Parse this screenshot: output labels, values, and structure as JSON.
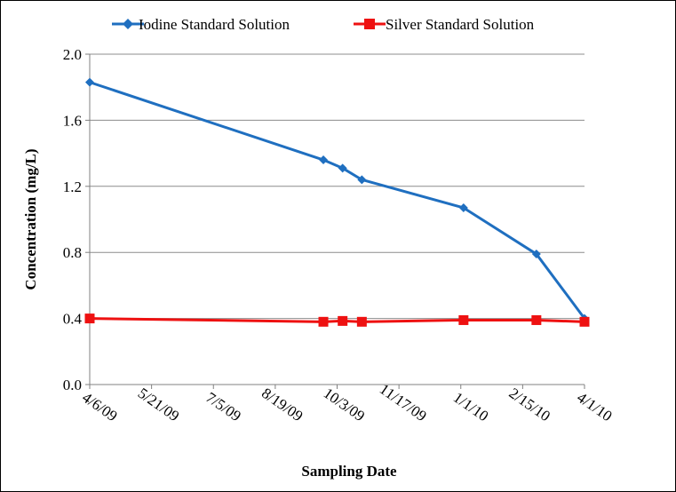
{
  "chart_data": {
    "type": "line",
    "title": "",
    "xlabel": "Sampling Date",
    "ylabel": "Concentration (mg/L)",
    "ylim": [
      0,
      2.0
    ],
    "yticks": [
      "0.0",
      "0.4",
      "0.8",
      "1.2",
      "1.6",
      "2.0"
    ],
    "xlim": [
      "2009-04-06",
      "2010-04-01"
    ],
    "xticks": [
      {
        "date": "2009-04-06",
        "label": "4/6/09"
      },
      {
        "date": "2009-05-21",
        "label": "5/21/09"
      },
      {
        "date": "2009-07-05",
        "label": "7/5/09"
      },
      {
        "date": "2009-08-19",
        "label": "8/19/09"
      },
      {
        "date": "2009-10-03",
        "label": "10/3/09"
      },
      {
        "date": "2009-11-17",
        "label": "11/17/09"
      },
      {
        "date": "2010-01-01",
        "label": "1/1/10"
      },
      {
        "date": "2010-02-15",
        "label": "2/15/10"
      },
      {
        "date": "2010-04-01",
        "label": "4/1/10"
      }
    ],
    "grid": "horizontal",
    "legend": "top",
    "series": [
      {
        "name": "Iodine Standard Solution",
        "color": "#1f6fc0",
        "marker": "diamond",
        "x": [
          "2009-04-06",
          "2009-09-23",
          "2009-10-07",
          "2009-10-21",
          "2010-01-03",
          "2010-02-25",
          "2010-04-01"
        ],
        "y": [
          1.83,
          1.36,
          1.31,
          1.24,
          1.07,
          0.79,
          0.4
        ]
      },
      {
        "name": "Silver Standard Solution",
        "color": "#ee1111",
        "marker": "square",
        "x": [
          "2009-04-06",
          "2009-09-23",
          "2009-10-07",
          "2009-10-21",
          "2010-01-03",
          "2010-02-25",
          "2010-04-01"
        ],
        "y": [
          0.4,
          0.38,
          0.385,
          0.38,
          0.39,
          0.39,
          0.38
        ]
      }
    ]
  }
}
